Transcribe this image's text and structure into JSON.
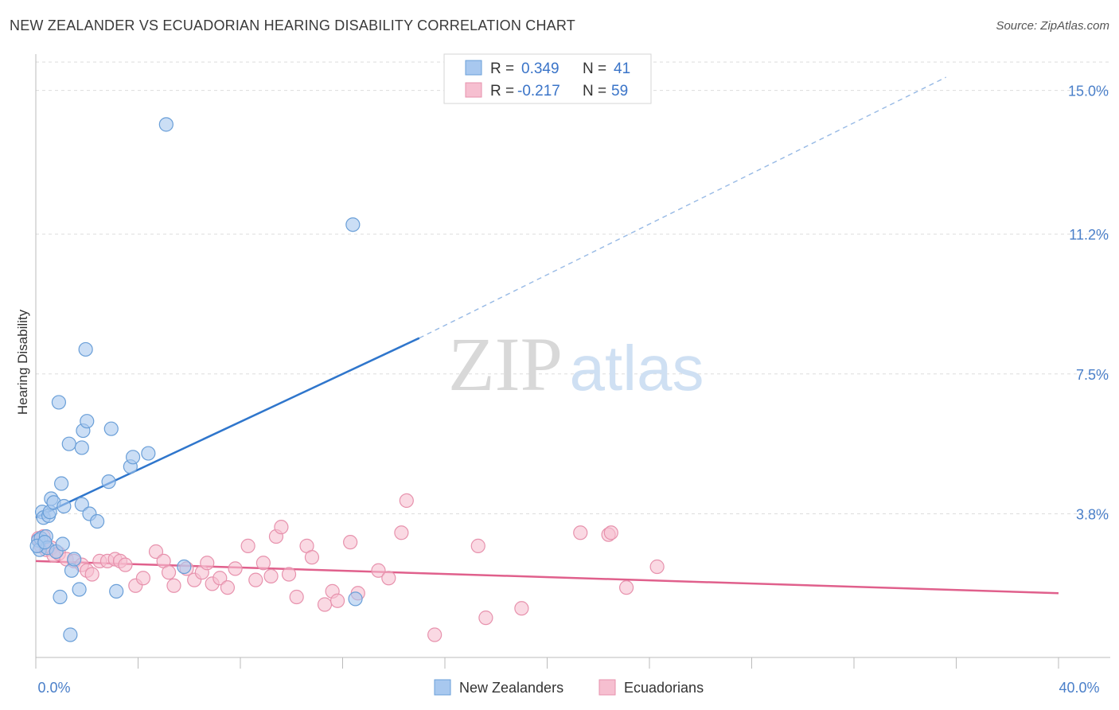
{
  "title": "NEW ZEALANDER VS ECUADORIAN HEARING DISABILITY CORRELATION CHART",
  "source": "Source: ZipAtlas.com",
  "watermark": {
    "zip": "ZIP",
    "atlas": "atlas"
  },
  "colors": {
    "blue_fill": "#a8c8ef",
    "blue_stroke": "#6a9fd8",
    "blue_line": "#2f76cc",
    "pink_fill": "#f6bfd0",
    "pink_stroke": "#e792ad",
    "pink_line": "#e0608c",
    "axis_label": "#4a7fc9",
    "grid": "#dddddd"
  },
  "legend": {
    "r_label": "R =",
    "n_label": "N =",
    "series": [
      {
        "name": "New Zealanders",
        "r": "0.349",
        "n": "41",
        "color": "blue"
      },
      {
        "name": "Ecuadorians",
        "r": "-0.217",
        "n": "59",
        "color": "pink"
      }
    ]
  },
  "chart_data": {
    "type": "scatter",
    "title": "NEW ZEALANDER VS ECUADORIAN HEARING DISABILITY CORRELATION CHART",
    "xlabel": "",
    "ylabel": "Hearing Disability",
    "xlim": [
      0,
      40
    ],
    "ylim": [
      0,
      15.75
    ],
    "x_tick_labels": [
      "0.0%",
      "40.0%"
    ],
    "y_ticks": [
      3.8,
      7.5,
      11.2,
      15.0
    ],
    "y_tick_labels": [
      "3.8%",
      "7.5%",
      "11.2%",
      "15.0%"
    ],
    "series": [
      {
        "name": "New Zealanders",
        "color": "blue",
        "points": [
          [
            0.1,
            3.1
          ],
          [
            0.15,
            2.85
          ],
          [
            0.2,
            3.15
          ],
          [
            0.25,
            3.85
          ],
          [
            0.3,
            3.7
          ],
          [
            0.4,
            3.2
          ],
          [
            0.45,
            2.9
          ],
          [
            0.5,
            3.75
          ],
          [
            0.55,
            3.85
          ],
          [
            0.6,
            4.2
          ],
          [
            0.7,
            4.1
          ],
          [
            0.8,
            2.8
          ],
          [
            0.9,
            6.75
          ],
          [
            0.95,
            1.6
          ],
          [
            1.0,
            4.6
          ],
          [
            1.05,
            3.0
          ],
          [
            1.1,
            4.0
          ],
          [
            1.3,
            5.65
          ],
          [
            1.35,
            0.6
          ],
          [
            1.4,
            2.3
          ],
          [
            1.5,
            2.6
          ],
          [
            1.7,
            1.8
          ],
          [
            1.8,
            4.05
          ],
          [
            1.8,
            5.55
          ],
          [
            1.85,
            6.0
          ],
          [
            1.95,
            8.15
          ],
          [
            2.0,
            6.25
          ],
          [
            2.1,
            3.8
          ],
          [
            2.4,
            3.6
          ],
          [
            2.85,
            4.65
          ],
          [
            2.95,
            6.05
          ],
          [
            3.15,
            1.75
          ],
          [
            3.7,
            5.05
          ],
          [
            3.8,
            5.3
          ],
          [
            4.4,
            5.4
          ],
          [
            5.1,
            14.1
          ],
          [
            5.8,
            2.4
          ],
          [
            12.4,
            11.45
          ],
          [
            12.5,
            1.55
          ],
          [
            0.05,
            2.95
          ],
          [
            0.35,
            3.05
          ]
        ],
        "trend": {
          "x": [
            0,
            15.0
          ],
          "y": [
            3.7,
            8.45
          ],
          "extended_to": [
            35.6,
            15.35
          ]
        }
      },
      {
        "name": "Ecuadorians",
        "color": "pink",
        "points": [
          [
            0.1,
            3.15
          ],
          [
            0.2,
            2.95
          ],
          [
            0.3,
            3.2
          ],
          [
            0.4,
            2.85
          ],
          [
            0.6,
            2.9
          ],
          [
            0.7,
            2.7
          ],
          [
            0.9,
            2.75
          ],
          [
            1.2,
            2.6
          ],
          [
            1.5,
            2.55
          ],
          [
            1.8,
            2.45
          ],
          [
            2.0,
            2.3
          ],
          [
            2.2,
            2.2
          ],
          [
            2.5,
            2.55
          ],
          [
            2.8,
            2.55
          ],
          [
            3.1,
            2.6
          ],
          [
            3.3,
            2.55
          ],
          [
            3.5,
            2.45
          ],
          [
            3.9,
            1.9
          ],
          [
            4.2,
            2.1
          ],
          [
            4.7,
            2.8
          ],
          [
            5.0,
            2.55
          ],
          [
            5.2,
            2.25
          ],
          [
            5.4,
            1.9
          ],
          [
            5.9,
            2.35
          ],
          [
            6.2,
            2.05
          ],
          [
            6.5,
            2.25
          ],
          [
            6.7,
            2.5
          ],
          [
            6.9,
            1.95
          ],
          [
            7.2,
            2.1
          ],
          [
            7.5,
            1.85
          ],
          [
            7.8,
            2.35
          ],
          [
            8.3,
            2.95
          ],
          [
            8.6,
            2.05
          ],
          [
            8.9,
            2.5
          ],
          [
            9.2,
            2.15
          ],
          [
            9.4,
            3.2
          ],
          [
            9.6,
            3.45
          ],
          [
            9.9,
            2.2
          ],
          [
            10.2,
            1.6
          ],
          [
            10.6,
            2.95
          ],
          [
            10.8,
            2.65
          ],
          [
            11.3,
            1.4
          ],
          [
            11.6,
            1.75
          ],
          [
            11.8,
            1.5
          ],
          [
            12.3,
            3.05
          ],
          [
            12.6,
            1.7
          ],
          [
            13.4,
            2.3
          ],
          [
            13.8,
            2.1
          ],
          [
            14.3,
            3.3
          ],
          [
            14.5,
            4.15
          ],
          [
            15.6,
            0.6
          ],
          [
            17.3,
            2.95
          ],
          [
            17.6,
            1.05
          ],
          [
            19.0,
            1.3
          ],
          [
            21.3,
            3.3
          ],
          [
            22.4,
            3.25
          ],
          [
            22.5,
            3.3
          ],
          [
            23.1,
            1.85
          ],
          [
            24.3,
            2.4
          ]
        ],
        "trend": {
          "x": [
            0,
            40
          ],
          "y": [
            2.55,
            1.7
          ]
        }
      }
    ]
  }
}
